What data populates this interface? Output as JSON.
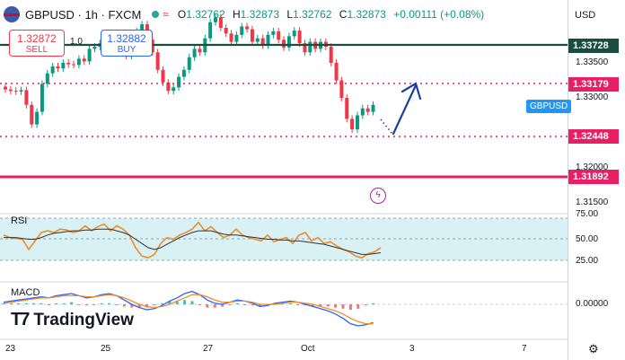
{
  "header": {
    "symbol": "GBPUSD · 1h · FXCM",
    "ohlc": {
      "open_label": "O",
      "open": "1.32762",
      "high_label": "H",
      "high": "1.32873",
      "low_label": "L",
      "low": "1.32762",
      "close_label": "C",
      "close": "1.32873",
      "change": "+0.00111 (+0.08%)"
    }
  },
  "trade": {
    "sell_price": "1.32872",
    "sell_label": "SELL",
    "spread": "1.0",
    "buy_price": "1.32882",
    "buy_label": "BUY"
  },
  "price_axis": {
    "currency": "USD",
    "ticks": [
      "1.33500",
      "1.33000",
      "1.32000",
      "1.31500"
    ],
    "levels": [
      {
        "value": "1.33728",
        "color": "#1b4d3e"
      },
      {
        "value": "1.33179",
        "color": "#e91e63"
      },
      {
        "value": "1.32448",
        "color": "#e91e63"
      },
      {
        "value": "1.31892",
        "color": "#e91e63"
      }
    ],
    "symbol_tag": "GBPUSD"
  },
  "rsi": {
    "label": "RSI",
    "ticks": [
      "75.00",
      "50.00",
      "25.00"
    ]
  },
  "macd": {
    "label": "MACD",
    "ticks": [
      "0.00000"
    ]
  },
  "time_axis": {
    "ticks": [
      "23",
      "25",
      "27",
      "Oct",
      "3",
      "7"
    ]
  },
  "branding": {
    "name": "TradingView"
  },
  "chart_data": {
    "type": "candlestick",
    "price_close_series": [
      1.3312,
      1.331,
      1.3309,
      1.3311,
      1.329,
      1.3262,
      1.328,
      1.332,
      1.3335,
      1.3345,
      1.3342,
      1.335,
      1.3348,
      1.3347,
      1.3356,
      1.3352,
      1.337,
      1.3373,
      1.3378,
      1.3371,
      1.3372,
      1.3365,
      1.3368,
      1.336,
      1.3375,
      1.3395,
      1.3405,
      1.3383,
      1.3365,
      1.334,
      1.3322,
      1.331,
      1.3315,
      1.333,
      1.334,
      1.3358,
      1.337,
      1.3365,
      1.3385,
      1.3408,
      1.3415,
      1.34,
      1.3392,
      1.338,
      1.339,
      1.3402,
      1.3398,
      1.338,
      1.3385,
      1.3375,
      1.339,
      1.3395,
      1.3383,
      1.3372,
      1.3388,
      1.3396,
      1.3378,
      1.3365,
      1.338,
      1.337,
      1.338,
      1.3373,
      1.335,
      1.3325,
      1.33,
      1.327,
      1.3255,
      1.3275,
      1.3285,
      1.328,
      1.329
    ],
    "projection": {
      "from": 1.3244,
      "to": 1.3318,
      "label": "up"
    },
    "rsi_range": [
      25,
      75
    ],
    "rsi_levels": [
      75,
      50,
      25
    ]
  }
}
